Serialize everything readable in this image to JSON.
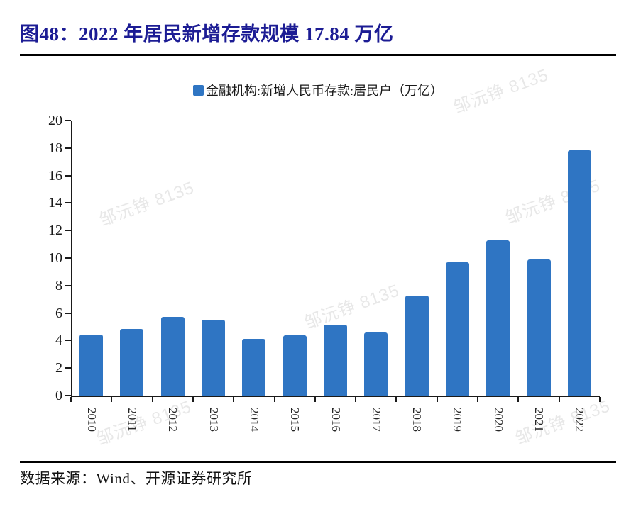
{
  "figure": {
    "title": "图48：2022 年居民新增存款规模 17.84 万亿"
  },
  "legend": {
    "label": "金融机构:新增人民币存款:居民户（万亿）",
    "marker_color": "#2F75C3"
  },
  "chart_data": {
    "type": "bar",
    "title": "2022 年居民新增存款规模 17.84 万亿",
    "series_name": "金融机构:新增人民币存款:居民户（万亿）",
    "categories": [
      "2010",
      "2011",
      "2012",
      "2013",
      "2014",
      "2015",
      "2016",
      "2017",
      "2018",
      "2019",
      "2020",
      "2021",
      "2022"
    ],
    "values": [
      4.45,
      4.85,
      5.71,
      5.49,
      4.14,
      4.36,
      5.17,
      4.6,
      7.28,
      9.7,
      11.3,
      9.9,
      17.84
    ],
    "xlabel": "",
    "ylabel": "",
    "ylim": [
      0,
      20
    ],
    "ytick_step": 2,
    "grid": false,
    "legend_position": "top-center",
    "bar_color": "#2F75C3",
    "axis_color": "#1a1a1a"
  },
  "watermark": {
    "text": "邹沅铮 8135",
    "color": "#e8e8e8"
  },
  "footer": {
    "source_label": "数据来源：Wind、开源证券研究所"
  },
  "colors": {
    "title": "#1c1c94",
    "bar": "#2F75C3",
    "axis": "#1a1a1a"
  }
}
